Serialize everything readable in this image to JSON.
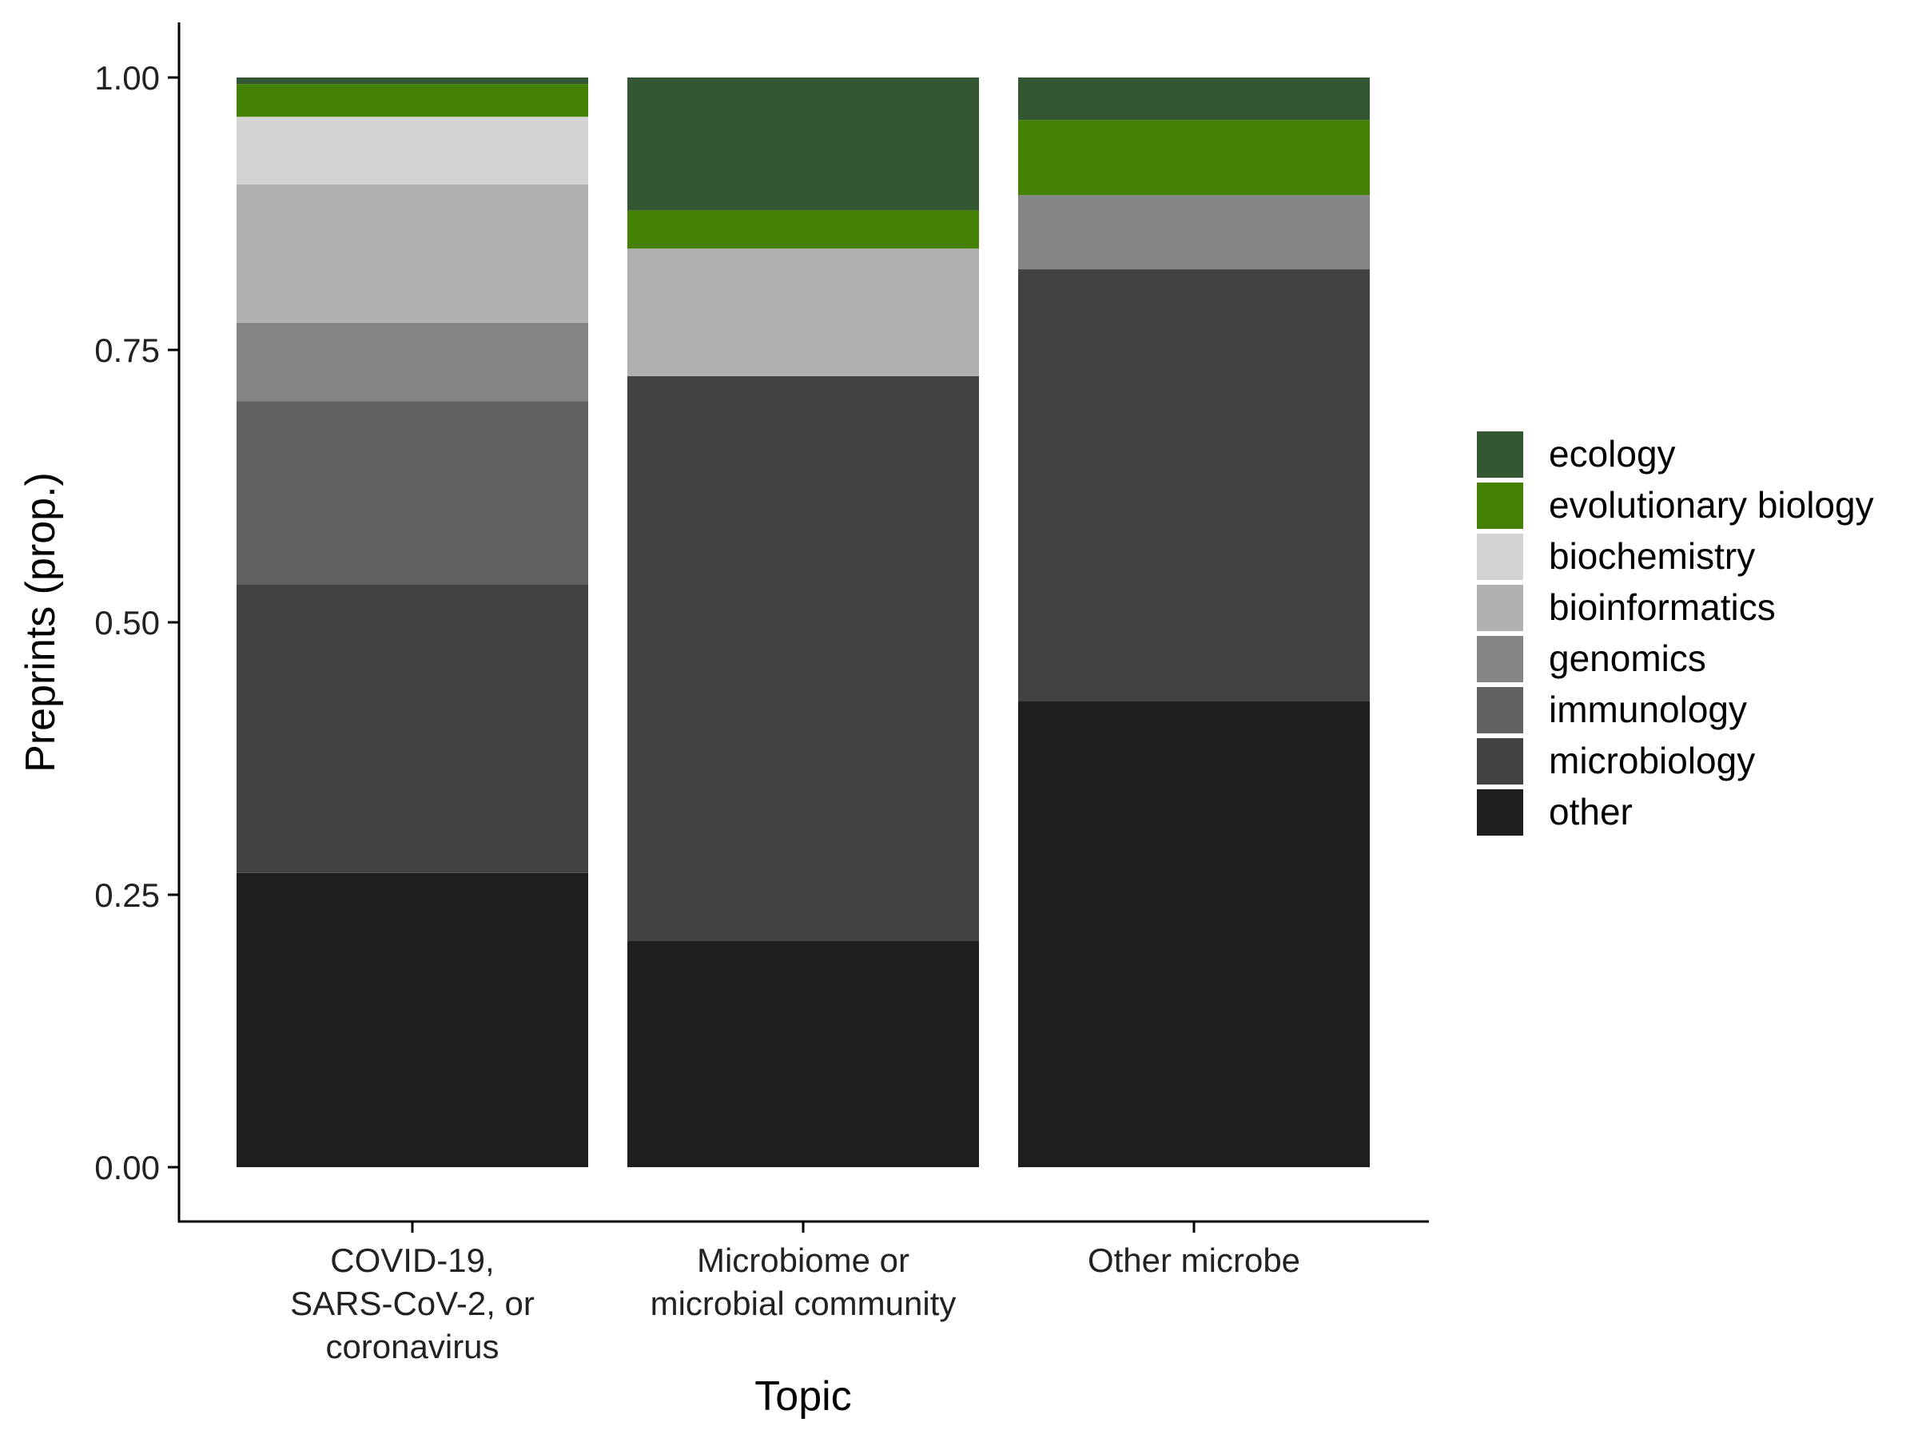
{
  "chart_data": {
    "type": "bar",
    "stacked": true,
    "title": "",
    "xlabel": "Topic",
    "ylabel": "Preprints (prop.)",
    "ylim": [
      0,
      1
    ],
    "yticks": [
      "0.00",
      "0.25",
      "0.50",
      "0.75",
      "1.00"
    ],
    "ytick_values": [
      0,
      0.25,
      0.5,
      0.75,
      1.0
    ],
    "grid": false,
    "legend_position": "right",
    "categories": [
      [
        "COVID-19,",
        "SARS-CoV-2, or",
        "coronavirus"
      ],
      [
        "Microbiome or",
        "microbial community"
      ],
      [
        "Other microbe"
      ]
    ],
    "series": [
      {
        "name": "other",
        "color": "#1e1e1e",
        "values": [
          0.27,
          0.208,
          0.428
        ]
      },
      {
        "name": "microbiology",
        "color": "#424242",
        "values": [
          0.265,
          0.518,
          0.396
        ]
      },
      {
        "name": "immunology",
        "color": "#626262",
        "values": [
          0.168,
          0.0,
          0.0
        ]
      },
      {
        "name": "genomics",
        "color": "#858585",
        "values": [
          0.072,
          0.0,
          0.068
        ]
      },
      {
        "name": "bioinformatics",
        "color": "#b0b0b0",
        "values": [
          0.127,
          0.117,
          0.0
        ]
      },
      {
        "name": "biochemistry",
        "color": "#d3d3d3",
        "values": [
          0.062,
          0.0,
          0.0
        ]
      },
      {
        "name": "evolutionary biology",
        "color": "#458104",
        "values": [
          0.03,
          0.035,
          0.069
        ]
      },
      {
        "name": "ecology",
        "color": "#345633",
        "values": [
          0.006,
          0.122,
          0.039
        ]
      }
    ],
    "legend_order": [
      "ecology",
      "evolutionary biology",
      "biochemistry",
      "bioinformatics",
      "genomics",
      "immunology",
      "microbiology",
      "other"
    ]
  }
}
